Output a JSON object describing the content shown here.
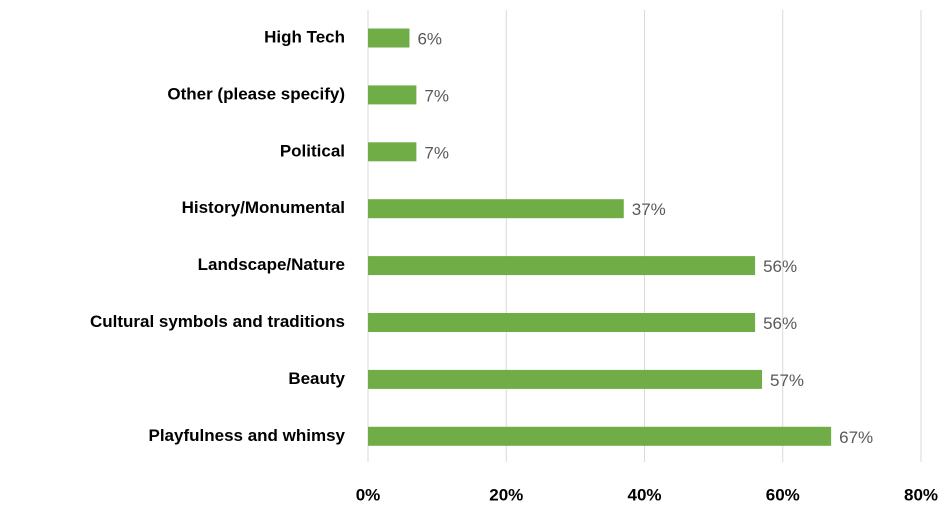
{
  "chart_data": {
    "type": "barh",
    "categories": [
      "High Tech",
      "Other (please specify)",
      "Political",
      "History/Monumental",
      "Landscape/Nature",
      "Cultural symbols and traditions",
      "Beauty",
      "Playfulness and whimsy"
    ],
    "values": [
      6,
      7,
      7,
      37,
      56,
      56,
      57,
      67
    ],
    "value_labels": [
      "6%",
      "7%",
      "7%",
      "37%",
      "56%",
      "56%",
      "57%",
      "67%"
    ],
    "color": "#70ad47",
    "xlim": [
      0,
      80
    ],
    "xticks": [
      {
        "value": 0,
        "label": "0%"
      },
      {
        "value": 20,
        "label": "20%"
      },
      {
        "value": 40,
        "label": "40%"
      },
      {
        "value": 60,
        "label": "60%"
      },
      {
        "value": 80,
        "label": "80%"
      }
    ],
    "grid": true
  }
}
